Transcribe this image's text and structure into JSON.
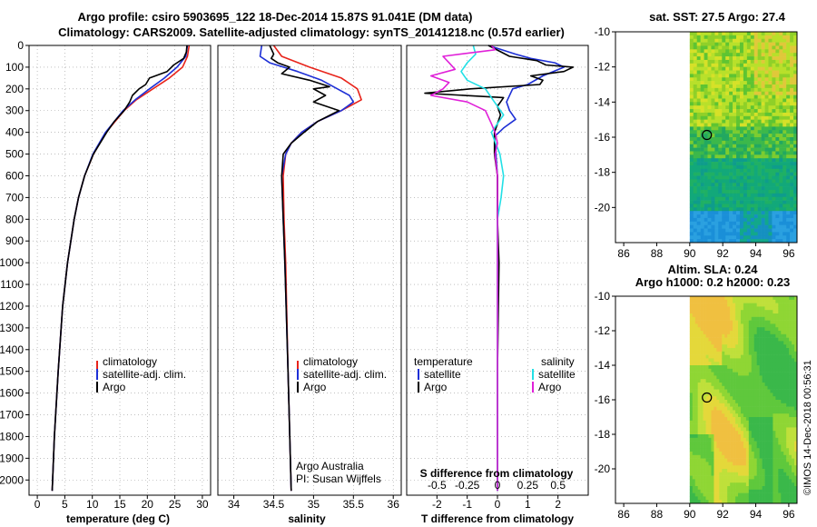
{
  "header": {
    "title_line1": "Argo profile: csiro 5903695_122 18-Dec-2014 15.87S 91.041E (DM data)",
    "title_line2": "Climatology: CARS2009. Satellite-adjusted climatology: synTS_20141218.nc (0.57d earlier)"
  },
  "colors": {
    "climatology": "#e8241b",
    "satellite": "#1d2fd6",
    "argo": "#000000",
    "salinity_satellite": "#22e0e6",
    "salinity_argo": "#e020d8",
    "grid": "#9a9a9a"
  },
  "chart_data": [
    {
      "type": "line",
      "id": "temperature",
      "xlabel": "temperature (deg C)",
      "ylabel": "",
      "xlim": [
        -1.5,
        31.5
      ],
      "ylim": [
        0,
        2070
      ],
      "y_inverted": true,
      "yticks": [
        0,
        100,
        200,
        300,
        400,
        500,
        600,
        700,
        800,
        900,
        1000,
        1100,
        1200,
        1300,
        1400,
        1500,
        1600,
        1700,
        1800,
        1900,
        2000
      ],
      "xticks": [
        0,
        5,
        10,
        15,
        20,
        25,
        30
      ],
      "legend": [
        "climatology",
        "satellite-adj. clim.",
        "Argo"
      ],
      "series": [
        {
          "name": "climatology",
          "depth": [
            0,
            50,
            100,
            150,
            200,
            250,
            300,
            400,
            500,
            600,
            700,
            800,
            1000,
            1200,
            1500,
            1800,
            2050
          ],
          "values": [
            27.6,
            27.3,
            26.4,
            24.0,
            21.0,
            18.0,
            15.8,
            12.5,
            10.2,
            8.6,
            7.5,
            6.7,
            5.5,
            4.6,
            3.8,
            3.1,
            2.7
          ]
        },
        {
          "name": "satellite-adj. clim.",
          "depth": [
            0,
            50,
            100,
            150,
            200,
            250,
            300,
            400,
            500,
            600,
            700,
            800,
            1000,
            1200,
            1500,
            1800,
            2050
          ],
          "values": [
            27.3,
            27.0,
            25.4,
            23.1,
            20.4,
            17.8,
            15.6,
            12.4,
            10.1,
            8.6,
            7.5,
            6.7,
            5.5,
            4.6,
            3.8,
            3.1,
            2.7
          ]
        },
        {
          "name": "Argo",
          "depth": [
            0,
            30,
            60,
            90,
            120,
            150,
            180,
            200,
            230,
            260,
            300,
            350,
            400,
            500,
            600,
            700,
            800,
            1000,
            1200,
            1500,
            1800,
            2050
          ],
          "values": [
            27.2,
            27.1,
            26.6,
            24.8,
            23.6,
            20.4,
            19.7,
            18.5,
            17.3,
            16.8,
            15.8,
            14.0,
            12.6,
            10.2,
            8.6,
            7.5,
            6.7,
            5.5,
            4.6,
            3.8,
            3.1,
            2.7
          ]
        }
      ]
    },
    {
      "type": "line",
      "id": "salinity",
      "xlabel": "salinity",
      "xlim": [
        33.8,
        36.1
      ],
      "ylim": [
        0,
        2070
      ],
      "y_inverted": true,
      "xticks": [
        34,
        34.5,
        35,
        35.5,
        36
      ],
      "legend": [
        "climatology",
        "satellite-adj. clim.",
        "Argo"
      ],
      "annotation": [
        "Argo Australia",
        "PI: Susan Wijffels"
      ],
      "series": [
        {
          "name": "climatology",
          "depth": [
            0,
            50,
            100,
            150,
            200,
            250,
            300,
            350,
            400,
            450,
            500,
            600,
            800,
            1000,
            1500,
            2050
          ],
          "values": [
            34.5,
            34.6,
            34.95,
            35.35,
            35.55,
            35.6,
            35.35,
            35.05,
            34.85,
            34.72,
            34.65,
            34.62,
            34.63,
            34.65,
            34.68,
            34.72
          ]
        },
        {
          "name": "satellite-adj. clim.",
          "depth": [
            0,
            50,
            80,
            120,
            160,
            200,
            230,
            260,
            300,
            350,
            400,
            450,
            500,
            600,
            800,
            1000,
            1500,
            2050
          ],
          "values": [
            34.35,
            34.33,
            34.45,
            34.8,
            35.1,
            35.3,
            35.45,
            35.5,
            35.35,
            35.05,
            34.85,
            34.72,
            34.65,
            34.6,
            34.62,
            34.64,
            34.68,
            34.72
          ]
        },
        {
          "name": "Argo",
          "depth": [
            0,
            40,
            60,
            80,
            100,
            130,
            160,
            190,
            200,
            230,
            260,
            300,
            350,
            400,
            450,
            500,
            600,
            800,
            1000,
            1500,
            2050
          ],
          "values": [
            34.45,
            34.5,
            34.47,
            34.55,
            34.7,
            34.6,
            34.95,
            35.2,
            35.0,
            35.15,
            35.0,
            35.32,
            35.05,
            34.88,
            34.72,
            34.62,
            34.6,
            34.62,
            34.64,
            34.68,
            34.72
          ]
        }
      ]
    },
    {
      "type": "line",
      "id": "differences",
      "xlabel": "T difference from climatology",
      "xlabel_top": "S difference from climatology",
      "xlim": [
        -3.0,
        3.0
      ],
      "s_xlim": [
        -0.75,
        0.75
      ],
      "ylim": [
        0,
        2070
      ],
      "y_inverted": true,
      "xticks": [
        -2,
        -1,
        0,
        1,
        2
      ],
      "xtick_labels": [
        "-2",
        "-1",
        "0",
        "1",
        "2"
      ],
      "s_xticks": [
        -0.5,
        -0.25,
        0,
        0.25,
        0.5
      ],
      "s_xtick_labels": [
        "-0.5",
        "-0.25",
        "0",
        "0.25",
        "0.5"
      ],
      "legend_titles": [
        "temperature",
        "salinity"
      ],
      "legend_left": [
        "satellite",
        "Argo"
      ],
      "legend_right": [
        "satellite",
        "Argo"
      ],
      "series": [
        {
          "name": "T satellite",
          "axis": "T",
          "depth": [
            0,
            40,
            60,
            80,
            100,
            140,
            180,
            200,
            260,
            300,
            340,
            380,
            420,
            500,
            600,
            800,
            1000,
            1200,
            1500,
            2050
          ],
          "values": [
            -0.3,
            0.6,
            1.1,
            1.9,
            2.2,
            1.5,
            1.0,
            0.5,
            0.3,
            0.4,
            0.6,
            0.2,
            -0.1,
            -0.05,
            0.0,
            0.0,
            0.0,
            0.0,
            0.0,
            0.0
          ]
        },
        {
          "name": "T Argo",
          "axis": "T",
          "depth": [
            0,
            50,
            70,
            90,
            100,
            120,
            140,
            160,
            180,
            200,
            220,
            240,
            280,
            320,
            360,
            400,
            500,
            600,
            800,
            1000,
            1500,
            2050
          ],
          "values": [
            -0.3,
            0.4,
            1.3,
            1.6,
            2.5,
            2.2,
            1.1,
            1.5,
            1.4,
            -0.9,
            -2.4,
            0.2,
            0.0,
            0.1,
            0.0,
            -0.1,
            -0.1,
            0.0,
            0.0,
            0.05,
            0.0,
            0.0
          ]
        },
        {
          "name": "S satellite",
          "axis": "S",
          "depth": [
            0,
            40,
            80,
            120,
            160,
            200,
            240,
            280,
            320,
            360,
            400,
            500,
            600,
            700,
            800,
            1000,
            1200,
            1500,
            2050
          ],
          "values": [
            -0.2,
            -0.18,
            -0.25,
            -0.3,
            -0.25,
            -0.1,
            -0.05,
            0.0,
            0.05,
            0.0,
            -0.05,
            0.02,
            0.05,
            0.03,
            0.0,
            0.0,
            0.0,
            0.0,
            0.0
          ]
        },
        {
          "name": "S Argo",
          "axis": "S",
          "depth": [
            0,
            20,
            50,
            80,
            110,
            140,
            170,
            200,
            230,
            260,
            300,
            360,
            400,
            450,
            500,
            600,
            800,
            1000,
            1500,
            2050
          ],
          "values": [
            -0.05,
            -0.02,
            -0.45,
            -0.4,
            -0.35,
            -0.55,
            -0.4,
            -0.45,
            -0.55,
            -0.25,
            -0.1,
            -0.05,
            -0.02,
            0.0,
            -0.02,
            0.0,
            0.0,
            0.0,
            0.0,
            0.0
          ]
        }
      ]
    },
    {
      "type": "heatmap",
      "id": "sst_map",
      "title": "sat. SST: 27.5  Argo: 27.4",
      "xlim": [
        85.5,
        96.5
      ],
      "ylim": [
        -22,
        -10
      ],
      "xticks": [
        86,
        88,
        90,
        92,
        94,
        96
      ],
      "yticks": [
        -10,
        -12,
        -14,
        -16,
        -18,
        -20
      ],
      "float_position": [
        91.041,
        -15.87
      ],
      "data_lon_min": 90
    },
    {
      "type": "heatmap",
      "id": "sla_map",
      "title": "Altim. SLA: 0.24",
      "subtitle": "Argo h1000: 0.2 h2000: 0.23",
      "xlim": [
        85.5,
        96.5
      ],
      "ylim": [
        -22,
        -10
      ],
      "xticks": [
        86,
        88,
        90,
        92,
        94,
        96
      ],
      "yticks": [
        -10,
        -12,
        -14,
        -16,
        -18,
        -20
      ],
      "float_position": [
        91.041,
        -15.87
      ],
      "data_lon_min": 90
    }
  ],
  "footer": {
    "credit": "©IMOS 14-Dec-2018 00:56:31"
  }
}
